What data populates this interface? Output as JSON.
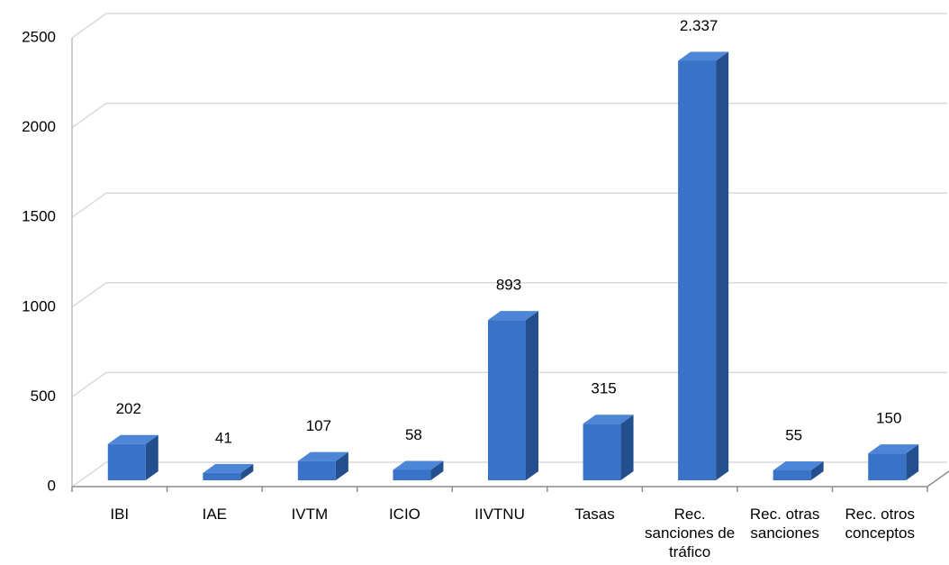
{
  "chart_data": {
    "type": "bar3d",
    "categories": [
      "IBI",
      "IAE",
      "IVTM",
      "ICIO",
      "IIVTNU",
      "Tasas",
      "Rec. sanciones de tráfico",
      "Rec. otras sanciones",
      "Rec. otros conceptos"
    ],
    "values": [
      202,
      41,
      107,
      58,
      893,
      315,
      2337,
      55,
      150
    ],
    "value_labels": [
      "202",
      "41",
      "107",
      "58",
      "893",
      "315",
      "2.337",
      "55",
      "150"
    ],
    "color": "#3a72c8",
    "ylim": [
      0,
      2500
    ],
    "yticks": [
      0,
      500,
      1000,
      1500,
      2000,
      2500
    ],
    "grid": true
  }
}
